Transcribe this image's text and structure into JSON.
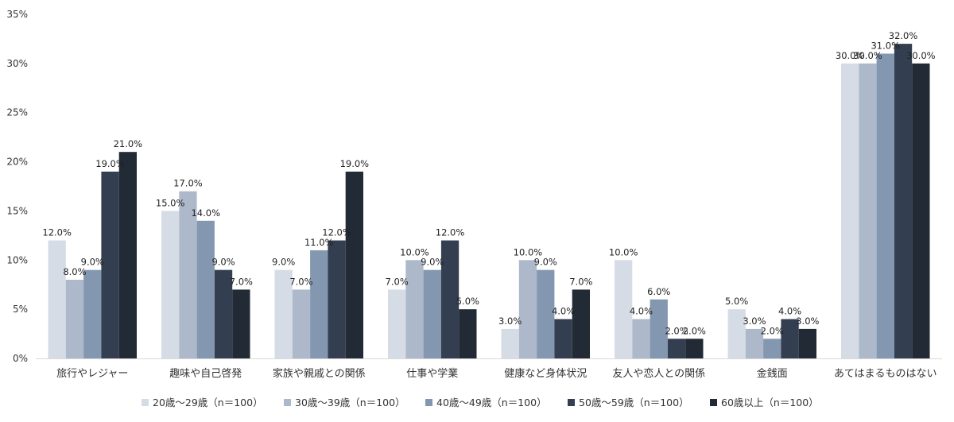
{
  "chart_data": {
    "type": "bar",
    "title": "",
    "xlabel": "",
    "ylabel": "",
    "ylim": [
      0,
      35
    ],
    "y_ticks": [
      "0%",
      "5%",
      "10%",
      "15%",
      "20%",
      "25%",
      "30%",
      "35%"
    ],
    "y_tick_values": [
      0,
      5,
      10,
      15,
      20,
      25,
      30,
      35
    ],
    "grid": false,
    "legend_position": "bottom",
    "categories": [
      "旅行やレジャー",
      "趣味や自己啓発",
      "家族や親戚との関係",
      "仕事や学業",
      "健康など身体状況",
      "友人や恋人との関係",
      "金銭面",
      "あてはまるものはない"
    ],
    "series": [
      {
        "name": "20歳～29歳（n＝100）",
        "color": "#d6dce5",
        "values": [
          12,
          15,
          9,
          7,
          3,
          10,
          5,
          30
        ],
        "labels": [
          "12.0%",
          "15.0%",
          "9.0%",
          "7.0%",
          "3.0%",
          "10.0%",
          "5.0%",
          "30.0%"
        ]
      },
      {
        "name": "30歳～39歳（n＝100）",
        "color": "#adb9ca",
        "values": [
          8,
          17,
          7,
          10,
          10,
          4,
          3,
          30
        ],
        "labels": [
          "8.0%",
          "17.0%",
          "7.0%",
          "10.0%",
          "10.0%",
          "4.0%",
          "3.0%",
          "30.0%"
        ]
      },
      {
        "name": "40歳～49歳（n＝100）",
        "color": "#8497b0",
        "values": [
          9,
          14,
          11,
          9,
          9,
          6,
          2,
          31
        ],
        "labels": [
          "9.0%",
          "14.0%",
          "11.0%",
          "9.0%",
          "9.0%",
          "6.0%",
          "2.0%",
          "31.0%"
        ]
      },
      {
        "name": "50歳～59歳（n＝100）",
        "color": "#333f50",
        "values": [
          19,
          9,
          12,
          12,
          4,
          2,
          4,
          32
        ],
        "labels": [
          "19.0%",
          "9.0%",
          "12.0%",
          "12.0%",
          "4.0%",
          "2.0%",
          "4.0%",
          "32.0%"
        ]
      },
      {
        "name": "60歳以上（n＝100）",
        "color": "#222a35",
        "values": [
          21,
          7,
          19,
          5,
          7,
          2,
          3,
          30
        ],
        "labels": [
          "21.0%",
          "7.0%",
          "19.0%",
          "5.0%",
          "7.0%",
          "2.0%",
          "3.0%",
          "30.0%"
        ]
      }
    ]
  }
}
